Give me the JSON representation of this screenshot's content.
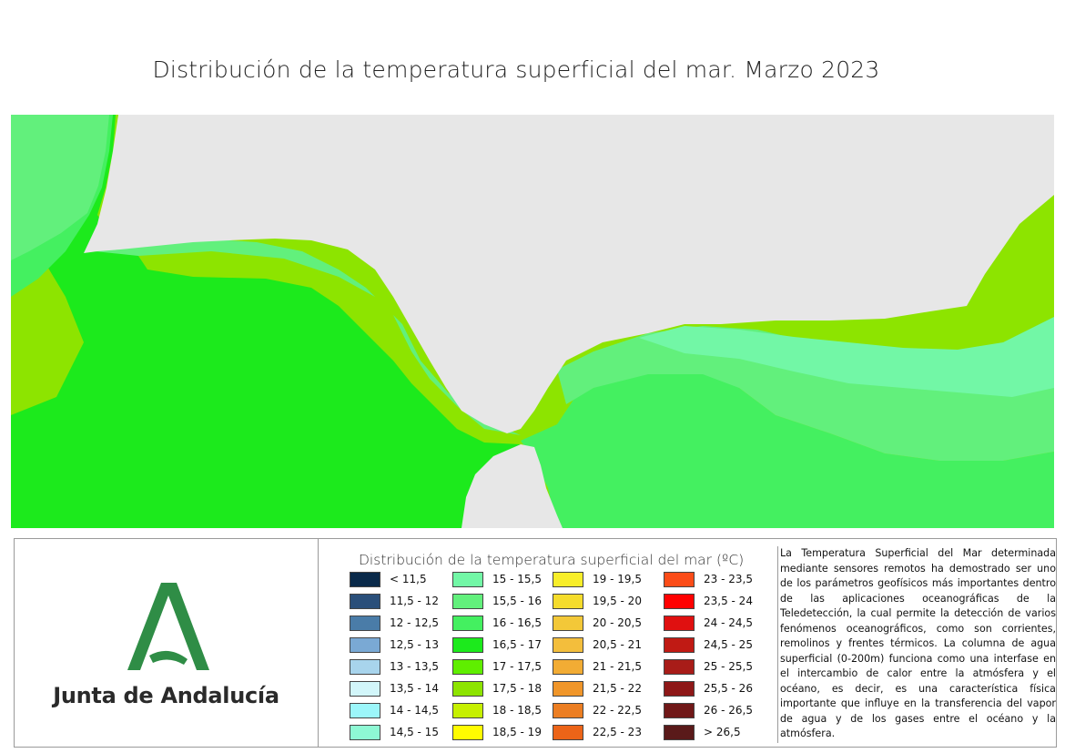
{
  "title": "Distribución de la temperatura superficial del mar. Marzo 2023",
  "map": {
    "land_color": "#e7e7e7",
    "zones": [
      {
        "range": "17,5 - 18",
        "color": "#8de400"
      },
      {
        "range": "17 - 17,5",
        "color": "#5fee00"
      },
      {
        "range": "16,5 - 17",
        "color": "#1cea1c"
      },
      {
        "range": "16 - 16,5",
        "color": "#44f060"
      },
      {
        "range": "15,5 - 16",
        "color": "#62f07c"
      },
      {
        "range": "15 - 15,5",
        "color": "#72f7a6"
      }
    ]
  },
  "logo": {
    "text": "Junta de Andalucía",
    "color": "#2f8d46"
  },
  "legend": {
    "title": "Distribución de la temperatura superficial del mar (ºC)",
    "columns": [
      [
        {
          "label": "< 11,5",
          "color": "#0a2a4a"
        },
        {
          "label": "11,5 - 12",
          "color": "#2a4f7a"
        },
        {
          "label": "12 - 12,5",
          "color": "#4a7ca8"
        },
        {
          "label": "12,5 - 13",
          "color": "#7aa9d4"
        },
        {
          "label": "13 - 13,5",
          "color": "#a8d4ec"
        },
        {
          "label": "13,5 - 14",
          "color": "#d2f6fa"
        },
        {
          "label": "14 - 14,5",
          "color": "#9cf6fa"
        },
        {
          "label": "14,5 - 15",
          "color": "#8ef8d4"
        }
      ],
      [
        {
          "label": "15 - 15,5",
          "color": "#72f7a6"
        },
        {
          "label": "15,5 - 16",
          "color": "#62f07c"
        },
        {
          "label": "16 - 16,5",
          "color": "#44f060"
        },
        {
          "label": "16,5 - 17",
          "color": "#1cea1c"
        },
        {
          "label": "17 - 17,5",
          "color": "#5fee00"
        },
        {
          "label": "17,5 - 18",
          "color": "#8de400"
        },
        {
          "label": "18 - 18,5",
          "color": "#c6f000"
        },
        {
          "label": "18,5 - 19",
          "color": "#fffc00"
        }
      ],
      [
        {
          "label": "19 - 19,5",
          "color": "#f8ee2a"
        },
        {
          "label": "19,5 - 20",
          "color": "#f5dc2c"
        },
        {
          "label": "20 - 20,5",
          "color": "#f3c838"
        },
        {
          "label": "20,5 - 21",
          "color": "#f3be3c"
        },
        {
          "label": "21 - 21,5",
          "color": "#f2ac34"
        },
        {
          "label": "21,5 - 22",
          "color": "#f0962a"
        },
        {
          "label": "22 - 22,5",
          "color": "#ec7e22"
        },
        {
          "label": "22,5 - 23",
          "color": "#ec6418"
        }
      ],
      [
        {
          "label": "23 - 23,5",
          "color": "#fb4c18"
        },
        {
          "label": "23,5 - 24",
          "color": "#ff0000"
        },
        {
          "label": "24 - 24,5",
          "color": "#e01010"
        },
        {
          "label": "24,5 - 25",
          "color": "#c01a14"
        },
        {
          "label": "25 - 25,5",
          "color": "#a81c18"
        },
        {
          "label": "25,5 - 26",
          "color": "#8e1818"
        },
        {
          "label": "26 - 26,5",
          "color": "#701818"
        },
        {
          "label": "> 26,5",
          "color": "#5a1a1a"
        }
      ]
    ]
  },
  "description": "La Temperatura Superficial del Mar determinada mediante sensores remotos ha demostrado ser uno de los parámetros geofísicos más importantes dentro de las aplicaciones oceanográficas de la Teledetección, la cual permite la detección de varios fenómenos oceanográficos, como son corrientes, remolinos y frentes térmicos. La columna de agua superficial (0-200m) funciona como una interfase en el intercambio de calor entre la atmósfera y el océano, es decir, es una característica física importante que influye en la transferencia del vapor de agua y de los gases entre el océano y la atmósfera."
}
